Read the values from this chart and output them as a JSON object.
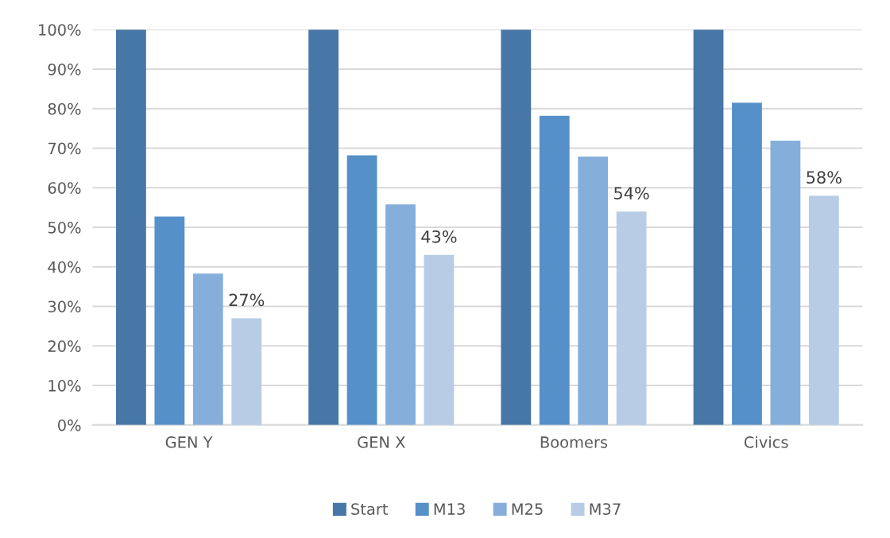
{
  "chart_data": {
    "type": "bar",
    "categories": [
      "GEN Y",
      "GEN X",
      "Boomers",
      "Civics"
    ],
    "series": [
      {
        "name": "Start",
        "color": "#4677a7",
        "values": [
          100,
          100,
          100,
          100
        ]
      },
      {
        "name": "M13",
        "color": "#5590c8",
        "values": [
          52.7,
          68.2,
          78.2,
          81.5
        ]
      },
      {
        "name": "M25",
        "color": "#86aedb",
        "values": [
          38.3,
          55.8,
          67.9,
          71.9
        ]
      },
      {
        "name": "M37",
        "color": "#b8cce6",
        "values": [
          27,
          43,
          54,
          58
        ],
        "value_labels": [
          "27%",
          "43%",
          "54%",
          "58%"
        ]
      }
    ],
    "ylim": [
      0,
      100
    ],
    "yticks": [
      {
        "value": 0,
        "label": "0%"
      },
      {
        "value": 10,
        "label": "10%"
      },
      {
        "value": 20,
        "label": "20%"
      },
      {
        "value": 30,
        "label": "30%"
      },
      {
        "value": 40,
        "label": "40%"
      },
      {
        "value": 50,
        "label": "50%"
      },
      {
        "value": 60,
        "label": "60%"
      },
      {
        "value": 70,
        "label": "70%"
      },
      {
        "value": 80,
        "label": "80%"
      },
      {
        "value": 90,
        "label": "90%"
      },
      {
        "value": 100,
        "label": "100%"
      }
    ],
    "grid": "y",
    "legend": "bottom"
  }
}
